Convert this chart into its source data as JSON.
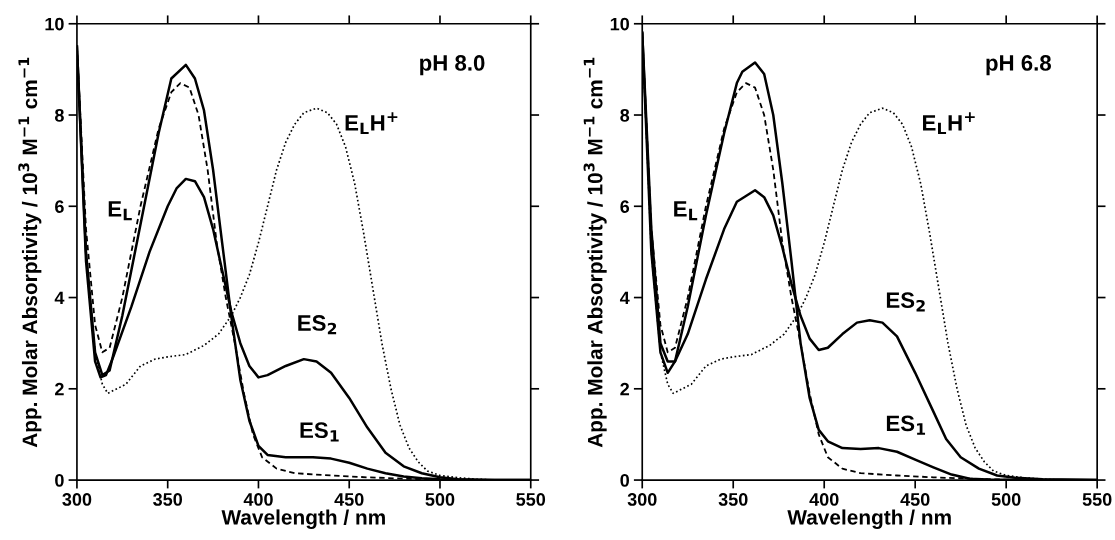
{
  "chart_data": [
    {
      "type": "line",
      "xlabel": "Wavelength / nm",
      "ylabel": "App. Molar Absorptivity / 10$^{3}$ M$^{−1}$ cm$^{−1}$",
      "xlim": [
        300,
        550
      ],
      "ylim": [
        0,
        10
      ],
      "xticks": [
        300,
        350,
        400,
        450,
        500,
        550
      ],
      "yticks": [
        0,
        2,
        4,
        6,
        8,
        10
      ],
      "grid": false,
      "legend": false,
      "series": [
        {
          "color": "#000000",
          "line_style": "dashed",
          "x": [
            300,
            305,
            310,
            314,
            318,
            325,
            335,
            345,
            352,
            357,
            362,
            367,
            372,
            377,
            382,
            387,
            392,
            397,
            402,
            410,
            420,
            440,
            460,
            480,
            500,
            550
          ],
          "values": [
            9.5,
            5.5,
            3.4,
            2.8,
            2.9,
            4.0,
            6.0,
            7.7,
            8.5,
            8.7,
            8.6,
            8.0,
            6.8,
            5.2,
            4.0,
            3.0,
            1.9,
            1.0,
            0.5,
            0.25,
            0.15,
            0.1,
            0.06,
            0.03,
            0.01,
            0
          ]
        },
        {
          "color": "#000000",
          "line_style": "solid",
          "x": [
            300,
            305,
            310,
            314,
            318,
            325,
            335,
            345,
            352,
            360,
            365,
            370,
            375,
            380,
            385,
            390,
            395,
            400,
            405,
            415,
            430,
            440,
            450,
            460,
            470,
            480,
            490,
            500,
            520,
            550
          ],
          "values": [
            9.5,
            5.0,
            2.8,
            2.3,
            2.4,
            3.6,
            5.6,
            7.6,
            8.8,
            9.1,
            8.8,
            8.1,
            6.8,
            5.2,
            3.6,
            2.2,
            1.3,
            0.75,
            0.55,
            0.5,
            0.5,
            0.47,
            0.38,
            0.25,
            0.15,
            0.08,
            0.04,
            0.02,
            0,
            0
          ]
        },
        {
          "color": "#000000",
          "line_style": "solid",
          "x": [
            300,
            305,
            310,
            313,
            316,
            320,
            330,
            340,
            350,
            355,
            360,
            365,
            370,
            375,
            380,
            385,
            390,
            395,
            400,
            405,
            415,
            425,
            432,
            440,
            450,
            460,
            470,
            480,
            490,
            500,
            510,
            530,
            550
          ],
          "values": [
            9.5,
            4.8,
            2.6,
            2.25,
            2.3,
            2.7,
            3.8,
            5.0,
            6.0,
            6.4,
            6.6,
            6.55,
            6.2,
            5.5,
            4.6,
            3.7,
            3.0,
            2.5,
            2.25,
            2.3,
            2.5,
            2.65,
            2.6,
            2.35,
            1.8,
            1.15,
            0.6,
            0.3,
            0.15,
            0.06,
            0.02,
            0,
            0
          ]
        },
        {
          "color": "#000000",
          "line_style": "dotted",
          "x": [
            300,
            305,
            310,
            314,
            317,
            322,
            327,
            335,
            343,
            350,
            360,
            370,
            378,
            385,
            390,
            395,
            400,
            405,
            410,
            415,
            420,
            425,
            432,
            438,
            443,
            448,
            453,
            458,
            463,
            468,
            473,
            478,
            483,
            488,
            493,
            500,
            510,
            520,
            530,
            550
          ],
          "values": [
            9.5,
            5.0,
            2.8,
            2.1,
            1.9,
            2.0,
            2.1,
            2.5,
            2.65,
            2.7,
            2.75,
            2.95,
            3.2,
            3.6,
            4.0,
            4.5,
            5.2,
            6.0,
            6.8,
            7.4,
            7.8,
            8.05,
            8.15,
            8.05,
            7.8,
            7.3,
            6.5,
            5.4,
            4.2,
            3.0,
            2.0,
            1.2,
            0.7,
            0.4,
            0.2,
            0.1,
            0.05,
            0.02,
            0,
            0
          ]
        }
      ],
      "annotations": [
        "pH 8.0",
        "E$_{L}$",
        "E$_{L}$H$^{+}$",
        "ES$_{2}$",
        "ES$_{1}$"
      ]
    },
    {
      "type": "line",
      "xlabel": "Wavelength / nm",
      "ylabel": "App. Molar Absorptivity / 10$^{3}$ M$^{−1}$ cm$^{−1}$",
      "xlim": [
        300,
        550
      ],
      "ylim": [
        0,
        10
      ],
      "xticks": [
        300,
        350,
        400,
        450,
        500,
        550
      ],
      "yticks": [
        0,
        2,
        4,
        6,
        8,
        10
      ],
      "grid": false,
      "legend": false,
      "series": [
        {
          "color": "#000000",
          "line_style": "dashed",
          "x": [
            300,
            305,
            310,
            314,
            318,
            325,
            335,
            345,
            352,
            357,
            362,
            367,
            372,
            377,
            382,
            387,
            392,
            397,
            402,
            410,
            420,
            440,
            460,
            480,
            500,
            550
          ],
          "values": [
            9.8,
            5.5,
            3.4,
            2.8,
            2.9,
            4.0,
            6.0,
            7.7,
            8.5,
            8.7,
            8.6,
            8.0,
            6.8,
            5.2,
            4.0,
            3.0,
            1.9,
            1.0,
            0.5,
            0.25,
            0.15,
            0.1,
            0.06,
            0.03,
            0.01,
            0
          ]
        },
        {
          "color": "#000000",
          "line_style": "solid",
          "x": [
            300,
            305,
            310,
            314,
            318,
            325,
            335,
            345,
            352,
            355,
            362,
            367,
            372,
            377,
            382,
            387,
            392,
            397,
            402,
            410,
            420,
            430,
            440,
            450,
            460,
            470,
            480,
            490,
            550
          ],
          "values": [
            9.8,
            5.5,
            3.0,
            2.6,
            2.6,
            3.8,
            5.8,
            7.6,
            8.7,
            8.95,
            9.15,
            8.9,
            8.0,
            6.5,
            4.8,
            3.0,
            1.8,
            1.1,
            0.85,
            0.7,
            0.68,
            0.7,
            0.62,
            0.45,
            0.28,
            0.12,
            0.03,
            0.01,
            0
          ]
        },
        {
          "color": "#000000",
          "line_style": "solid",
          "x": [
            300,
            305,
            310,
            314,
            318,
            325,
            335,
            345,
            352,
            362,
            367,
            372,
            377,
            382,
            387,
            392,
            397,
            402,
            410,
            418,
            425,
            432,
            440,
            450,
            460,
            467,
            475,
            485,
            495,
            505,
            520,
            550
          ],
          "values": [
            9.8,
            5.0,
            2.8,
            2.35,
            2.6,
            3.2,
            4.4,
            5.5,
            6.1,
            6.35,
            6.2,
            5.8,
            5.1,
            4.3,
            3.6,
            3.1,
            2.85,
            2.9,
            3.2,
            3.45,
            3.5,
            3.45,
            3.15,
            2.35,
            1.5,
            0.9,
            0.5,
            0.25,
            0.1,
            0.05,
            0.02,
            0
          ]
        },
        {
          "color": "#000000",
          "line_style": "dotted",
          "x": [
            300,
            305,
            310,
            314,
            317,
            322,
            327,
            335,
            343,
            350,
            360,
            370,
            378,
            385,
            390,
            395,
            400,
            405,
            410,
            415,
            420,
            425,
            432,
            438,
            443,
            448,
            453,
            458,
            463,
            468,
            473,
            478,
            483,
            488,
            493,
            500,
            510,
            520,
            530,
            550
          ],
          "values": [
            9.8,
            5.0,
            2.8,
            2.1,
            1.9,
            2.0,
            2.1,
            2.5,
            2.65,
            2.7,
            2.75,
            2.95,
            3.2,
            3.6,
            4.0,
            4.5,
            5.2,
            6.0,
            6.8,
            7.4,
            7.8,
            8.05,
            8.15,
            8.05,
            7.8,
            7.3,
            6.5,
            5.4,
            4.2,
            3.0,
            2.0,
            1.2,
            0.7,
            0.4,
            0.2,
            0.1,
            0.05,
            0.02,
            0,
            0
          ]
        }
      ],
      "annotations": [
        "pH 6.8",
        "E$_{L}$",
        "E$_{L}$H$^{+}$",
        "ES$_{2}$",
        "ES$_{1}$"
      ]
    }
  ]
}
